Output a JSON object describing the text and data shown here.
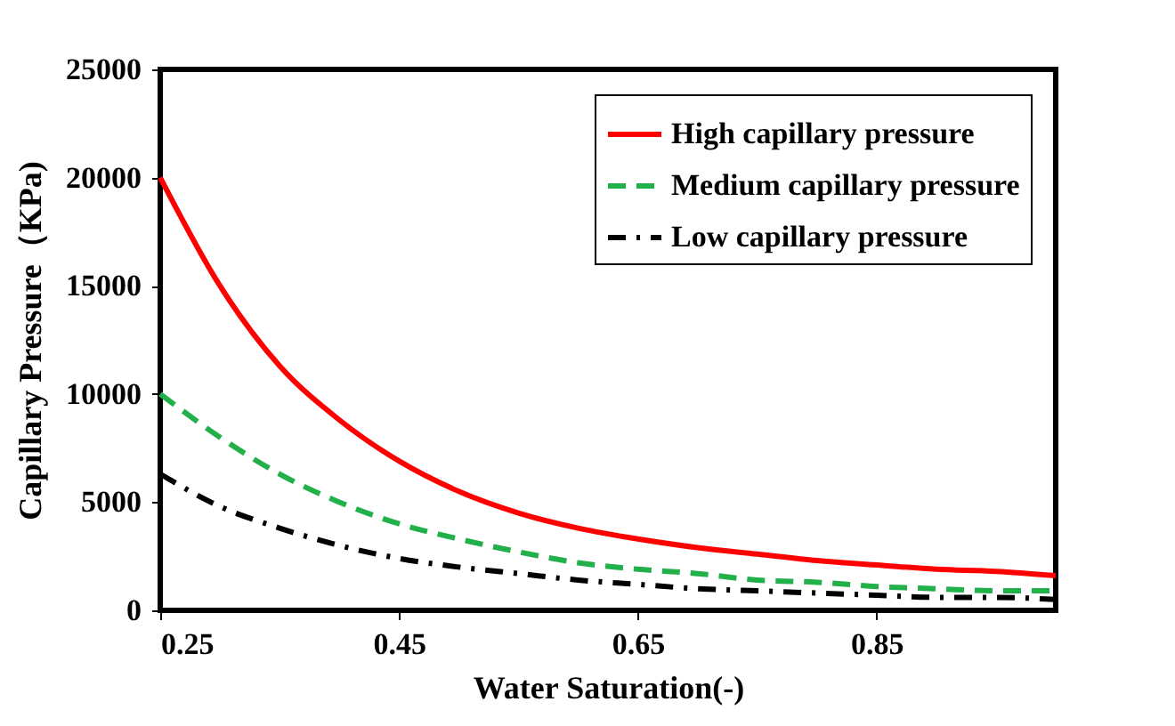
{
  "chart_data": {
    "type": "line",
    "xlabel": "Water Saturation(-)",
    "ylabel": "Capillary Pressure（KPa)",
    "x": [
      0.25,
      0.3,
      0.35,
      0.4,
      0.45,
      0.5,
      0.55,
      0.6,
      0.65,
      0.7,
      0.75,
      0.8,
      0.85,
      0.9,
      0.95,
      1.0
    ],
    "series": [
      {
        "name": "High capillary pressure",
        "color": "#ff0000",
        "line_style": "solid",
        "values": [
          20000,
          15000,
          11300,
          8800,
          6900,
          5500,
          4500,
          3800,
          3300,
          2900,
          2600,
          2300,
          2100,
          1900,
          1800,
          1600
        ]
      },
      {
        "name": "Medium capillary pressure",
        "color": "#22b04b",
        "line_style": "dashed",
        "values": [
          10000,
          8000,
          6300,
          5000,
          4000,
          3300,
          2700,
          2200,
          1900,
          1700,
          1400,
          1300,
          1100,
          1000,
          900,
          900
        ]
      },
      {
        "name": "Low capillary pressure",
        "color": "#000000",
        "line_style": "dashdot",
        "values": [
          6300,
          4800,
          3800,
          3000,
          2400,
          2000,
          1700,
          1400,
          1200,
          1000,
          900,
          800,
          700,
          600,
          600,
          500
        ]
      }
    ],
    "xlim": [
      0.25,
      1.0
    ],
    "xticks": [
      0.25,
      0.45,
      0.65,
      0.85
    ],
    "ylim": [
      0,
      25000
    ],
    "yticks": [
      0,
      5000,
      10000,
      15000,
      20000,
      25000
    ],
    "grid": false,
    "legend": "top right",
    "marker": "none"
  }
}
